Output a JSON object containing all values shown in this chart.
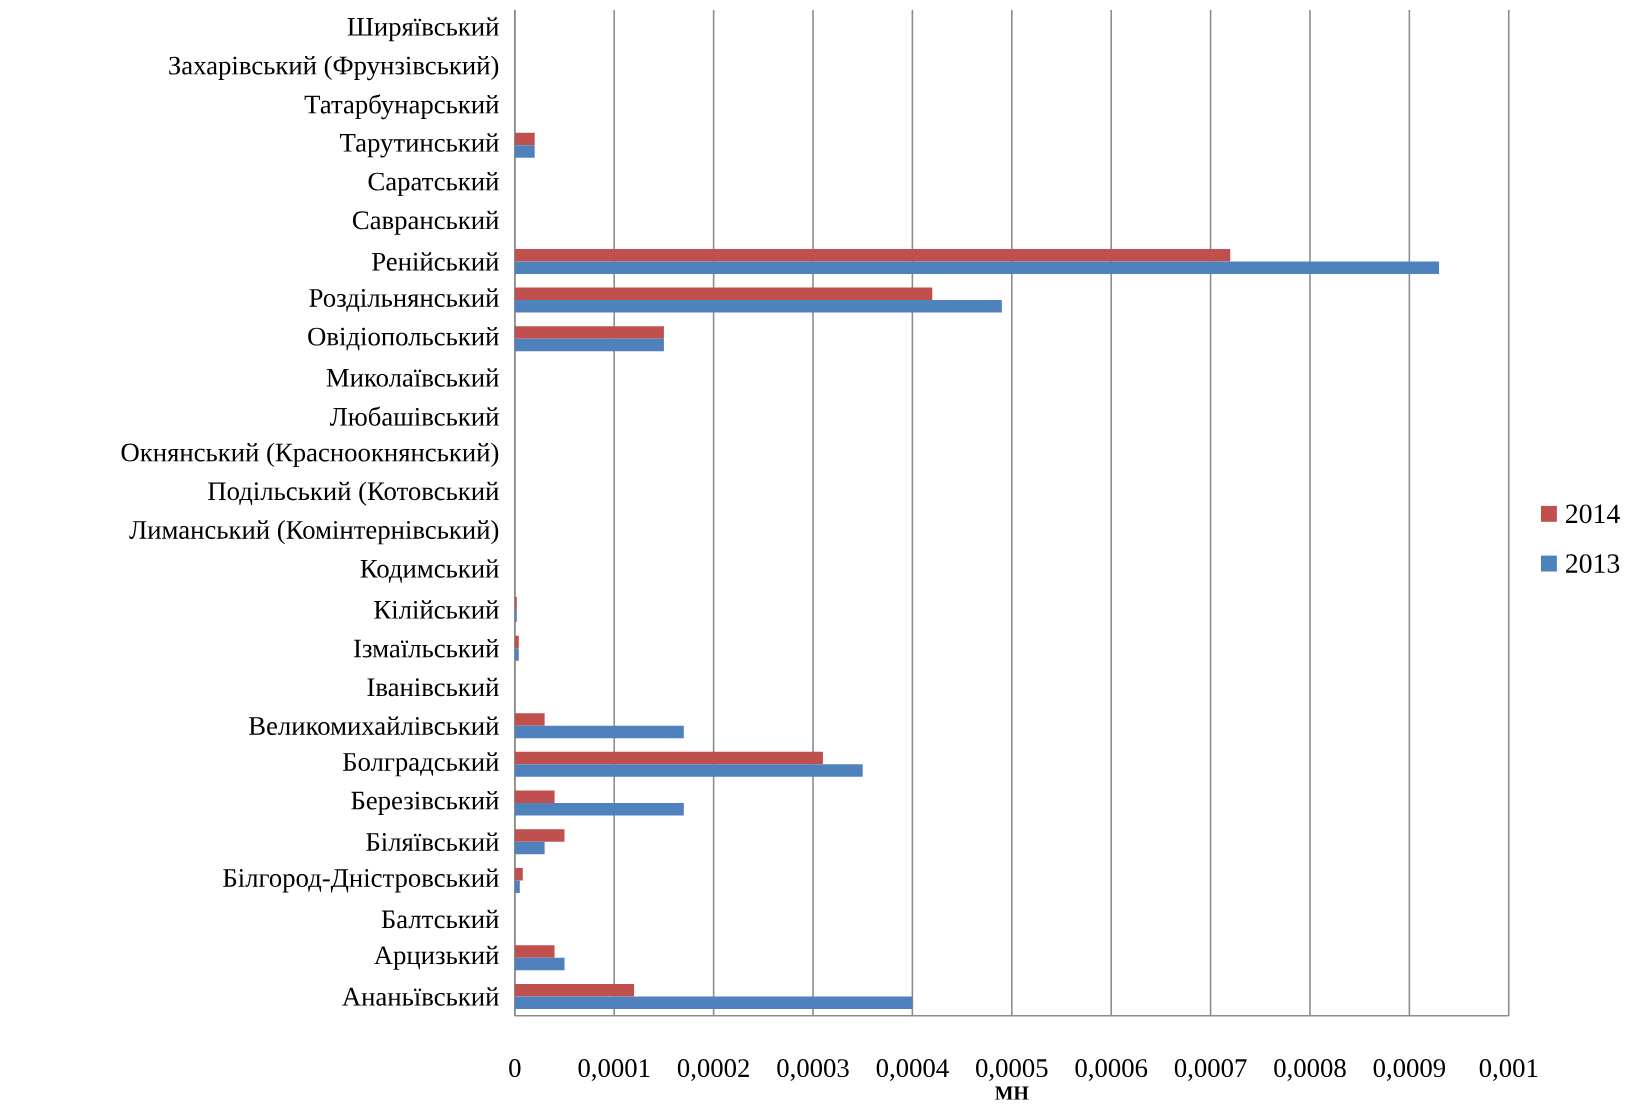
{
  "chart_data": {
    "type": "bar",
    "orientation": "horizontal",
    "xlabel": "МН",
    "categories": [
      "Ширяївський",
      "Захарівський (Фрунзівський)",
      "Татарбунарський",
      "Тарутинський",
      "Саратський",
      "Савранський",
      "Ренійський",
      "Роздільнянський",
      "Овідіопольський",
      "Миколаївський",
      "Любашівський",
      "Окнянський (Красноокнянський)",
      "Подільський (Котовський",
      "Лиманський (Комінтернівський)",
      "Кодимський",
      "Кілійський",
      "Ізмаїльський",
      "Іванівський",
      "Великомихайлівський",
      "Болградський",
      "Березівський",
      "Біляївський",
      "Білгород-Дністровський",
      "Балтський",
      "Арцизький",
      "Ананьївський"
    ],
    "series": [
      {
        "name": "2014",
        "color": "#c0504d",
        "values": [
          0,
          0,
          0,
          2e-05,
          0,
          0,
          0.00072,
          0.00042,
          0.00015,
          0,
          0,
          0,
          0,
          0,
          0,
          2e-06,
          4e-06,
          0,
          3e-05,
          0.00031,
          4e-05,
          5e-05,
          8e-06,
          0,
          4e-05,
          0.00012
        ]
      },
      {
        "name": "2013",
        "color": "#4f81bd",
        "values": [
          0,
          0,
          0,
          2e-05,
          0,
          0,
          0.00093,
          0.00049,
          0.00015,
          0,
          0,
          0,
          0,
          0,
          0,
          2e-06,
          4e-06,
          0,
          0.00017,
          0.00035,
          0.00017,
          3e-05,
          5e-06,
          0,
          5e-05,
          0.0004
        ]
      }
    ],
    "xlim": [
      0,
      0.001
    ],
    "xticks": [
      0,
      {
        "value": 0.0001,
        "label": "0,0001"
      },
      {
        "value": 0.0002,
        "label": "0,0002"
      },
      {
        "value": 0.0003,
        "label": "0,0003"
      },
      {
        "value": 0.0004,
        "label": "0,0004"
      },
      {
        "value": 0.0005,
        "label": "0,0005"
      },
      {
        "value": 0.0006,
        "label": "0,0006"
      },
      {
        "value": 0.0007,
        "label": "0,0007"
      },
      {
        "value": 0.0008,
        "label": "0,0008"
      },
      {
        "value": 0.0009,
        "label": "0,0009"
      },
      {
        "value": 0.001,
        "label": "0,001"
      }
    ],
    "grid": "x",
    "legend": "right"
  }
}
